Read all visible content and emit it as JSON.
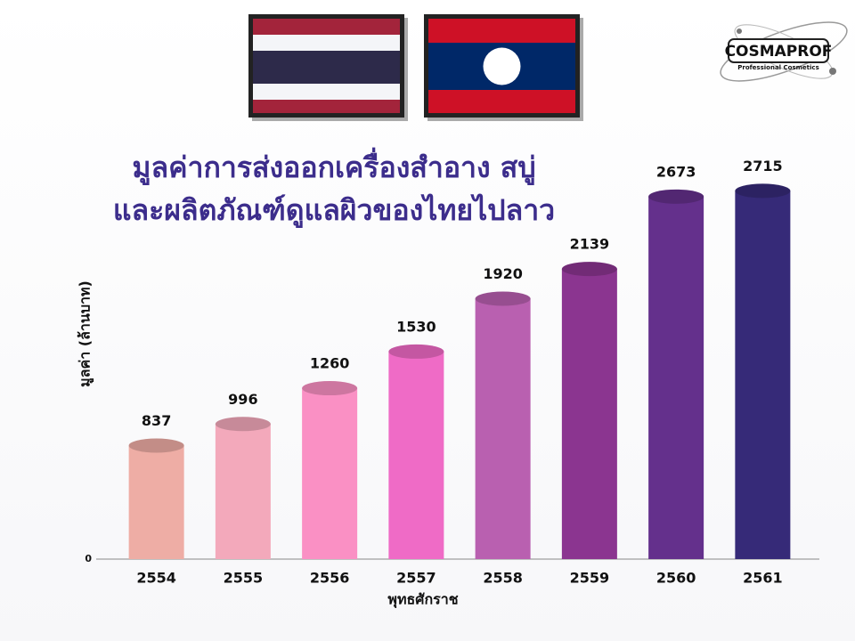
{
  "chart_data": {
    "type": "bar",
    "title": [
      "มูลค่าการส่งออกเครื่องสำอาง สบู่",
      "และผลิตภัณฑ์ดูแลผิวของไทยไปลาว"
    ],
    "y_label": "มูลค่า (ล้านบาท)",
    "x_label": "พุทธศักราช",
    "categories": [
      "2554",
      "2555",
      "2556",
      "2557",
      "2558",
      "2559",
      "2560",
      "2561"
    ],
    "values": [
      837,
      996,
      1260,
      1530,
      1920,
      2139,
      2673,
      2715
    ],
    "colors": [
      "#eeada5",
      "#f3a9bb",
      "#fa90c4",
      "#ef6bc6",
      "#b960b0",
      "#8b3590",
      "#64308c",
      "#362a78"
    ],
    "ylim": [
      0,
      3000
    ],
    "yticks": [
      0
    ]
  },
  "logo": {
    "name": "COSMAPROF",
    "tagline": "Professional Cosmetics"
  }
}
